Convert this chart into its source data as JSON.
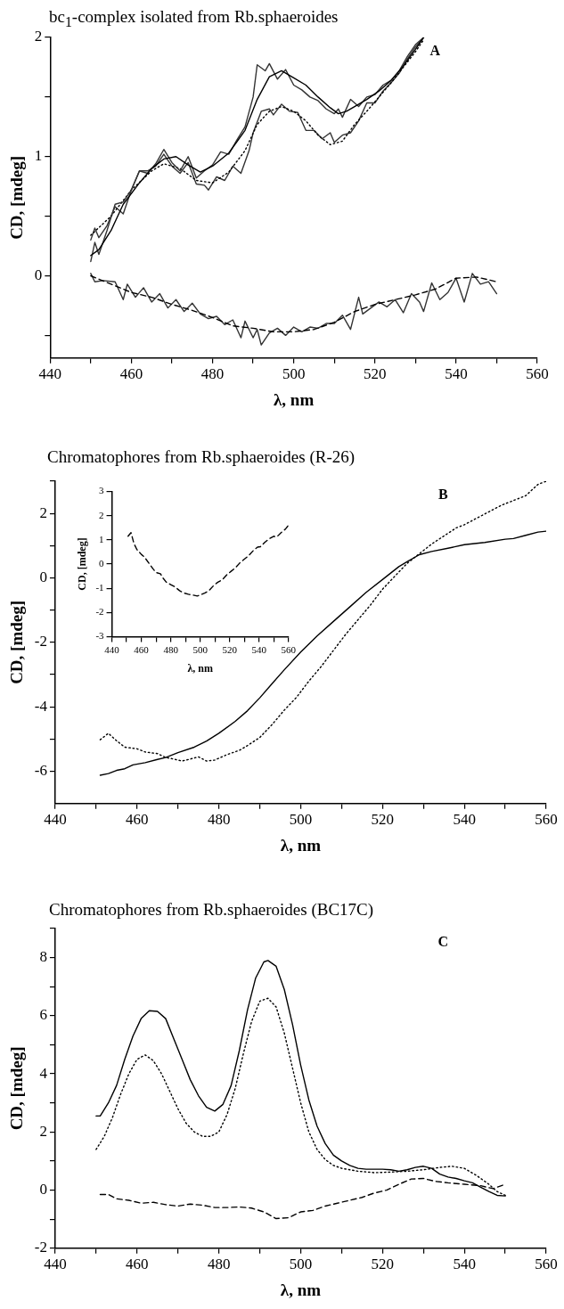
{
  "chart_data": [
    {
      "type": "line",
      "title": "bc$_{1}$-complex isolated from Rb.sphaeroides",
      "xlabel": "λ, nm",
      "ylabel": "CD, [mdeg]",
      "annotations": [
        "A"
      ],
      "legend": false,
      "grid": false,
      "marker": "none",
      "xlim": [
        440,
        560
      ],
      "xticks": [
        440,
        {
          "value": 450,
          "label": null
        },
        460,
        {
          "value": 470,
          "label": null
        },
        480,
        {
          "value": 490,
          "label": null
        },
        500,
        {
          "value": 510,
          "label": null
        },
        520,
        {
          "value": 530,
          "label": null
        },
        540,
        {
          "value": 550,
          "label": null
        },
        560
      ],
      "ylim": [
        -0.69,
        2
      ],
      "yticks": [
        {
          "value": -0.5,
          "label": null
        },
        0,
        {
          "value": 0.5,
          "label": null
        },
        1,
        {
          "value": 1.5,
          "label": null
        },
        2
      ],
      "series": [
        {
          "color": "#000000",
          "line_style": "solid",
          "x": [
            450,
            452,
            455,
            458,
            462,
            465,
            468,
            471,
            474,
            477,
            480,
            484,
            488,
            491,
            494,
            497,
            500,
            503,
            506,
            509,
            511,
            513,
            515,
            518,
            521,
            524,
            527,
            530,
            532
          ],
          "values": [
            0.17,
            0.22,
            0.38,
            0.6,
            0.78,
            0.9,
            0.98,
            1.0,
            0.93,
            0.87,
            0.92,
            1.03,
            1.22,
            1.48,
            1.67,
            1.72,
            1.66,
            1.6,
            1.5,
            1.41,
            1.36,
            1.38,
            1.42,
            1.48,
            1.55,
            1.64,
            1.76,
            1.9,
            2.0
          ]
        },
        {
          "color": "#333333",
          "line_style": "solid",
          "x": [
            450,
            451,
            452,
            454,
            456,
            458,
            460,
            462,
            464,
            466,
            468,
            470,
            472,
            474,
            476,
            478,
            480,
            482,
            484,
            486,
            488,
            490,
            491,
            493,
            494,
            496,
            498,
            500,
            502,
            504,
            506,
            508,
            510,
            511,
            512,
            514,
            516,
            518,
            520,
            522,
            524,
            526,
            528,
            530,
            532
          ],
          "values": [
            0.12,
            0.28,
            0.18,
            0.38,
            0.6,
            0.62,
            0.72,
            0.88,
            0.86,
            0.94,
            1.06,
            0.95,
            0.88,
            1.0,
            0.82,
            0.88,
            0.93,
            1.04,
            1.02,
            1.14,
            1.25,
            1.5,
            1.77,
            1.72,
            1.78,
            1.65,
            1.73,
            1.6,
            1.56,
            1.5,
            1.47,
            1.4,
            1.36,
            1.4,
            1.33,
            1.48,
            1.42,
            1.5,
            1.52,
            1.6,
            1.64,
            1.72,
            1.84,
            1.94,
            2.0
          ]
        },
        {
          "color": "#000000",
          "line_style": "dotted",
          "x": [
            450,
            455,
            460,
            465,
            468,
            472,
            476,
            480,
            484,
            488,
            491,
            494,
            497,
            500,
            503,
            506,
            509,
            512,
            515,
            518,
            521,
            524,
            527,
            530,
            532
          ],
          "values": [
            0.34,
            0.5,
            0.72,
            0.88,
            0.94,
            0.9,
            0.8,
            0.78,
            0.87,
            1.05,
            1.27,
            1.38,
            1.42,
            1.38,
            1.3,
            1.18,
            1.1,
            1.13,
            1.27,
            1.38,
            1.5,
            1.62,
            1.75,
            1.88,
            1.98
          ]
        },
        {
          "color": "#333333",
          "line_style": "solid",
          "x": [
            450,
            451,
            452,
            454,
            456,
            458,
            460,
            462,
            464,
            466,
            468,
            470,
            472,
            474,
            476,
            478,
            479,
            481,
            483,
            485,
            487,
            489,
            490,
            492,
            494,
            495,
            497,
            499,
            501,
            503,
            505,
            507,
            509,
            510,
            512,
            514,
            516,
            518,
            520,
            522,
            524,
            526,
            528,
            530,
            532
          ],
          "values": [
            0.3,
            0.4,
            0.32,
            0.42,
            0.58,
            0.52,
            0.72,
            0.88,
            0.88,
            0.92,
            1.02,
            0.92,
            0.86,
            0.95,
            0.77,
            0.76,
            0.72,
            0.83,
            0.8,
            0.92,
            0.86,
            1.05,
            1.2,
            1.38,
            1.4,
            1.35,
            1.44,
            1.38,
            1.37,
            1.22,
            1.22,
            1.15,
            1.2,
            1.12,
            1.18,
            1.2,
            1.3,
            1.45,
            1.45,
            1.55,
            1.62,
            1.7,
            1.82,
            1.92,
            2.0
          ]
        },
        {
          "color": "#000000",
          "line_style": "dashed",
          "x": [
            450,
            455,
            460,
            465,
            470,
            475,
            480,
            485,
            490,
            495,
            500,
            505,
            510,
            515,
            520,
            525,
            530,
            535,
            540,
            545,
            550
          ],
          "values": [
            0.0,
            -0.07,
            -0.14,
            -0.18,
            -0.24,
            -0.29,
            -0.35,
            -0.42,
            -0.44,
            -0.47,
            -0.47,
            -0.45,
            -0.39,
            -0.3,
            -0.24,
            -0.2,
            -0.16,
            -0.11,
            -0.02,
            -0.01,
            -0.05
          ]
        },
        {
          "color": "#333333",
          "line_style": "solid",
          "x": [
            450,
            451,
            453,
            456,
            458,
            459,
            461,
            463,
            465,
            467,
            469,
            471,
            473,
            475,
            477,
            479,
            481,
            483,
            485,
            487,
            488,
            490,
            491,
            492,
            494,
            496,
            498,
            500,
            502,
            504,
            506,
            508,
            510,
            512,
            514,
            516,
            517,
            519,
            521,
            523,
            525,
            527,
            529,
            531,
            532,
            534,
            536,
            538,
            540,
            542,
            544,
            546,
            548,
            550
          ],
          "values": [
            0.02,
            -0.05,
            -0.04,
            -0.05,
            -0.2,
            -0.07,
            -0.18,
            -0.1,
            -0.22,
            -0.15,
            -0.27,
            -0.2,
            -0.3,
            -0.23,
            -0.32,
            -0.36,
            -0.34,
            -0.41,
            -0.37,
            -0.52,
            -0.38,
            -0.52,
            -0.45,
            -0.58,
            -0.48,
            -0.44,
            -0.5,
            -0.43,
            -0.47,
            -0.43,
            -0.44,
            -0.4,
            -0.4,
            -0.33,
            -0.45,
            -0.18,
            -0.32,
            -0.27,
            -0.22,
            -0.26,
            -0.2,
            -0.31,
            -0.15,
            -0.22,
            -0.3,
            -0.06,
            -0.2,
            -0.14,
            -0.02,
            -0.22,
            0.02,
            -0.07,
            -0.05,
            -0.15
          ]
        }
      ]
    },
    {
      "type": "line",
      "title": "Chromatophores from Rb.sphaeroides (R-26)",
      "xlabel": "λ, nm",
      "ylabel": "CD, [mdeg]",
      "annotations": [
        "B"
      ],
      "legend": false,
      "grid": false,
      "marker": "none",
      "xlim": [
        440,
        560
      ],
      "xticks": [
        440,
        {
          "value": 450,
          "label": null
        },
        460,
        {
          "value": 470,
          "label": null
        },
        480,
        {
          "value": 490,
          "label": null
        },
        500,
        {
          "value": 510,
          "label": null
        },
        520,
        {
          "value": 530,
          "label": null
        },
        540,
        {
          "value": 550,
          "label": null
        },
        560
      ],
      "ylim": [
        -7,
        3
      ],
      "yticks": [
        -6,
        {
          "value": -5,
          "label": null
        },
        -4,
        {
          "value": -3,
          "label": null
        },
        -2,
        {
          "value": -1,
          "label": null
        },
        0,
        {
          "value": 1,
          "label": null
        },
        2,
        {
          "value": 3,
          "label": null
        }
      ],
      "series": [
        {
          "color": "#000000",
          "line_style": "solid",
          "x": [
            451,
            453,
            455,
            457,
            459,
            462,
            465,
            467,
            470,
            474,
            477,
            480,
            484,
            487,
            490,
            493,
            496,
            500,
            504,
            508,
            512,
            516,
            520,
            524,
            526,
            529,
            532,
            536,
            540,
            545,
            550,
            552,
            555,
            558,
            560
          ],
          "values": [
            -6.12,
            -6.07,
            -5.97,
            -5.92,
            -5.8,
            -5.73,
            -5.63,
            -5.57,
            -5.42,
            -5.25,
            -5.06,
            -4.82,
            -4.45,
            -4.12,
            -3.72,
            -3.28,
            -2.85,
            -2.3,
            -1.8,
            -1.35,
            -0.9,
            -0.45,
            -0.05,
            0.35,
            0.5,
            0.72,
            0.82,
            0.92,
            1.03,
            1.1,
            1.2,
            1.22,
            1.32,
            1.42,
            1.45
          ]
        },
        {
          "color": "#000000",
          "line_style": "dotted",
          "x": [
            451,
            453,
            455,
            457,
            460,
            462,
            465,
            467,
            469,
            471,
            473,
            475,
            477,
            479,
            482,
            485,
            487,
            490,
            493,
            496,
            499,
            502,
            505,
            508,
            511,
            514,
            517,
            520,
            523,
            526,
            529,
            532,
            535,
            538,
            540,
            543,
            546,
            549,
            552,
            555,
            558,
            560
          ],
          "values": [
            -5.02,
            -4.82,
            -5.05,
            -5.25,
            -5.3,
            -5.4,
            -5.45,
            -5.57,
            -5.62,
            -5.68,
            -5.62,
            -5.55,
            -5.68,
            -5.65,
            -5.48,
            -5.35,
            -5.2,
            -4.95,
            -4.55,
            -4.1,
            -3.7,
            -3.2,
            -2.75,
            -2.25,
            -1.75,
            -1.3,
            -0.85,
            -0.35,
            0.05,
            0.45,
            0.75,
            1.05,
            1.3,
            1.55,
            1.65,
            1.85,
            2.05,
            2.25,
            2.4,
            2.55,
            2.9,
            3.0
          ]
        }
      ]
    },
    {
      "type": "line",
      "xlabel": "λ, nm",
      "ylabel": "CD, [mdeg]",
      "legend": false,
      "grid": false,
      "marker": "none",
      "xlim": [
        440,
        560
      ],
      "xticks": [
        440,
        {
          "value": 450,
          "label": null
        },
        460,
        {
          "value": 470,
          "label": null
        },
        480,
        {
          "value": 490,
          "label": null
        },
        500,
        {
          "value": 510,
          "label": null
        },
        520,
        {
          "value": 530,
          "label": null
        },
        540,
        {
          "value": 550,
          "label": null
        },
        560
      ],
      "ylim": [
        -3,
        3
      ],
      "yticks": [
        -3,
        -2,
        -1,
        0,
        1,
        2,
        3
      ],
      "series": [
        {
          "color": "#000000",
          "line_style": "dashed",
          "x": [
            451,
            453,
            455,
            457,
            460,
            462,
            465,
            468,
            470,
            473,
            475,
            477,
            480,
            483,
            486,
            489,
            492,
            495,
            498,
            500,
            503,
            506,
            509,
            512,
            515,
            518,
            521,
            524,
            527,
            530,
            533,
            536,
            539,
            541,
            544,
            547,
            550,
            552,
            555,
            558,
            560
          ],
          "values": [
            1.15,
            1.3,
            0.85,
            0.6,
            0.4,
            0.3,
            0.05,
            -0.2,
            -0.35,
            -0.4,
            -0.6,
            -0.75,
            -0.85,
            -0.95,
            -1.1,
            -1.2,
            -1.25,
            -1.28,
            -1.32,
            -1.28,
            -1.2,
            -1.1,
            -0.9,
            -0.75,
            -0.65,
            -0.45,
            -0.3,
            -0.15,
            0.05,
            0.2,
            0.35,
            0.55,
            0.7,
            0.72,
            0.9,
            1.05,
            1.15,
            1.12,
            1.3,
            1.45,
            1.6
          ]
        }
      ]
    },
    {
      "type": "line",
      "title": "Chromatophores from Rb.sphaeroides (BC17C)",
      "xlabel": "λ, nm",
      "ylabel": "CD, [mdeg]",
      "annotations": [
        "C"
      ],
      "legend": false,
      "grid": false,
      "marker": "none",
      "xlim": [
        440,
        560
      ],
      "xticks": [
        440,
        {
          "value": 450,
          "label": null
        },
        460,
        {
          "value": 470,
          "label": null
        },
        480,
        {
          "value": 490,
          "label": null
        },
        500,
        {
          "value": 510,
          "label": null
        },
        520,
        {
          "value": 530,
          "label": null
        },
        540,
        {
          "value": 550,
          "label": null
        },
        560
      ],
      "ylim": [
        -2,
        9
      ],
      "yticks": [
        -2,
        {
          "value": -1,
          "label": null
        },
        0,
        {
          "value": 1,
          "label": null
        },
        2,
        {
          "value": 3,
          "label": null
        },
        4,
        {
          "value": 5,
          "label": null
        },
        6,
        {
          "value": 7,
          "label": null
        },
        8,
        {
          "value": 9,
          "label": null
        }
      ],
      "series": [
        {
          "color": "#000000",
          "line_style": "solid",
          "x": [
            450,
            451,
            453,
            455,
            457,
            459,
            461,
            463,
            465,
            467,
            469,
            471,
            473,
            475,
            477,
            479,
            481,
            483,
            485,
            487,
            489,
            491,
            492,
            494,
            496,
            498,
            500,
            502,
            504,
            506,
            508,
            510,
            512,
            514,
            516,
            518,
            520,
            522,
            524,
            526,
            528,
            530,
            532,
            534,
            536,
            538,
            540,
            542,
            544,
            546,
            548,
            550
          ],
          "values": [
            2.55,
            2.55,
            3.0,
            3.6,
            4.5,
            5.3,
            5.9,
            6.17,
            6.15,
            5.9,
            5.2,
            4.5,
            3.8,
            3.25,
            2.85,
            2.72,
            2.95,
            3.6,
            4.8,
            6.2,
            7.3,
            7.85,
            7.9,
            7.7,
            6.9,
            5.7,
            4.3,
            3.1,
            2.2,
            1.6,
            1.2,
            1.0,
            0.85,
            0.75,
            0.72,
            0.72,
            0.72,
            0.7,
            0.65,
            0.7,
            0.78,
            0.82,
            0.75,
            0.55,
            0.45,
            0.4,
            0.32,
            0.25,
            0.1,
            -0.05,
            -0.18,
            -0.2
          ]
        },
        {
          "color": "#000000",
          "line_style": "dotted",
          "x": [
            450,
            452,
            454,
            456,
            458,
            460,
            462,
            464,
            466,
            468,
            470,
            472,
            474,
            476,
            478,
            480,
            482,
            484,
            486,
            488,
            490,
            492,
            494,
            496,
            498,
            500,
            502,
            504,
            506,
            508,
            510,
            514,
            518,
            522,
            526,
            530,
            534,
            537,
            540,
            543,
            546,
            548,
            550
          ],
          "values": [
            1.4,
            1.85,
            2.5,
            3.3,
            4.0,
            4.5,
            4.65,
            4.45,
            4.0,
            3.4,
            2.8,
            2.3,
            2.0,
            1.85,
            1.85,
            2.0,
            2.6,
            3.5,
            4.7,
            5.8,
            6.5,
            6.6,
            6.3,
            5.4,
            4.2,
            3.0,
            2.0,
            1.4,
            1.05,
            0.85,
            0.75,
            0.65,
            0.6,
            0.62,
            0.65,
            0.7,
            0.78,
            0.82,
            0.75,
            0.5,
            0.2,
            -0.05,
            -0.18
          ]
        },
        {
          "color": "#000000",
          "line_style": "dashed",
          "x": [
            451,
            453,
            455,
            458,
            461,
            464,
            467,
            470,
            473,
            476,
            479,
            482,
            485,
            488,
            491,
            494,
            497,
            500,
            503,
            506,
            509,
            512,
            515,
            518,
            521,
            524,
            527,
            530,
            533,
            536,
            540,
            544,
            547,
            550
          ],
          "values": [
            -0.15,
            -0.15,
            -0.3,
            -0.35,
            -0.45,
            -0.42,
            -0.5,
            -0.55,
            -0.48,
            -0.52,
            -0.6,
            -0.6,
            -0.58,
            -0.62,
            -0.75,
            -0.98,
            -0.95,
            -0.75,
            -0.7,
            -0.55,
            -0.45,
            -0.35,
            -0.25,
            -0.1,
            0.0,
            0.2,
            0.38,
            0.4,
            0.3,
            0.25,
            0.2,
            0.15,
            0.05,
            0.2
          ]
        }
      ]
    }
  ]
}
